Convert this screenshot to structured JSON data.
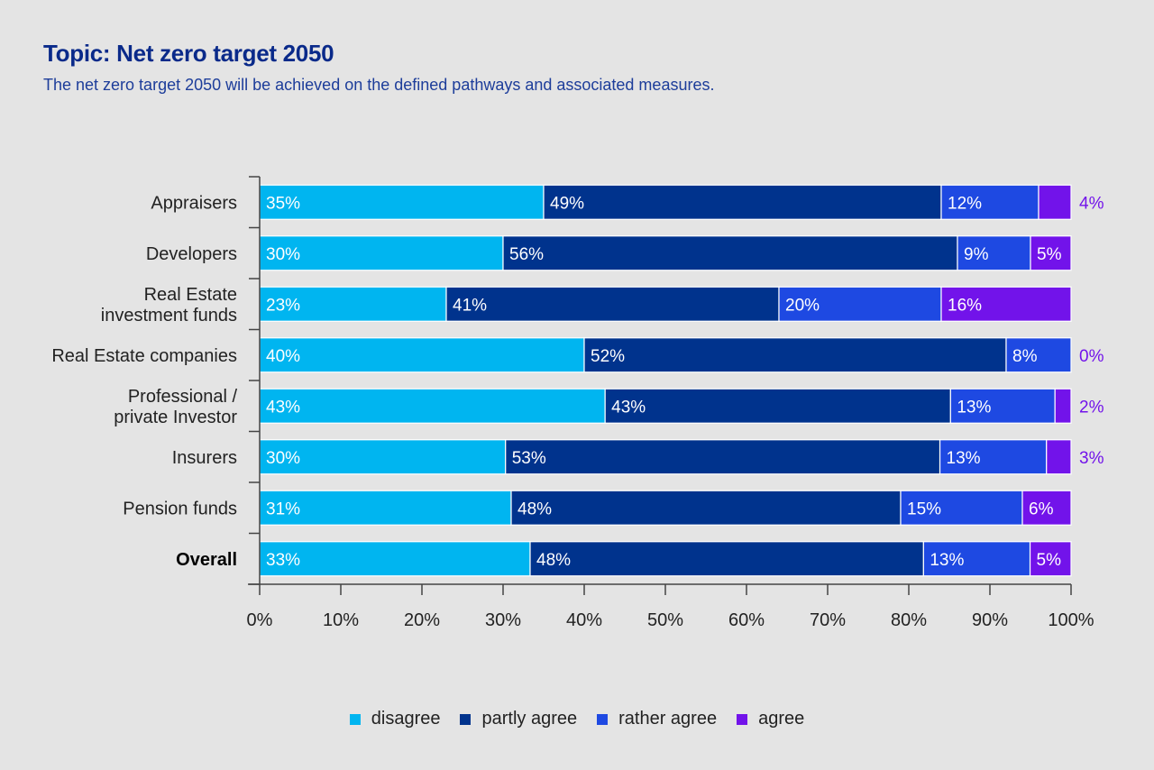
{
  "chart_data": {
    "type": "bar",
    "orientation": "horizontal",
    "stacked": true,
    "title": "Topic: Net zero target 2050",
    "subtitle": "The net zero target 2050 will be achieved on the defined pathways and associated measures.",
    "xlabel": "",
    "ylabel": "",
    "xlim": [
      0,
      100
    ],
    "x_ticks": [
      "0%",
      "10%",
      "20%",
      "30%",
      "40%",
      "50%",
      "60%",
      "70%",
      "80%",
      "90%",
      "100%"
    ],
    "grid": false,
    "legend_position": "bottom",
    "categories": [
      [
        "Appraisers"
      ],
      [
        "Developers"
      ],
      [
        "Real Estate",
        "investment funds"
      ],
      [
        "Real Estate companies"
      ],
      [
        "Professional /",
        "private Investor"
      ],
      [
        "Insurers"
      ],
      [
        "Pension funds"
      ],
      [
        "Overall"
      ]
    ],
    "bold_categories": [
      7
    ],
    "series": [
      {
        "name": "disagree",
        "color": "#00b5f0",
        "values": [
          35,
          30,
          23,
          40,
          43,
          30,
          31,
          33
        ]
      },
      {
        "name": "partly agree",
        "color": "#00338d",
        "values": [
          49,
          56,
          41,
          52,
          43,
          53,
          48,
          48
        ]
      },
      {
        "name": "rather agree",
        "color": "#1e49e2",
        "values": [
          12,
          9,
          20,
          8,
          13,
          13,
          15,
          13
        ]
      },
      {
        "name": "agree",
        "color": "#7213ea",
        "values": [
          4,
          5,
          16,
          0,
          2,
          3,
          6,
          5
        ]
      }
    ],
    "outside_label_color": "#7213ea"
  }
}
